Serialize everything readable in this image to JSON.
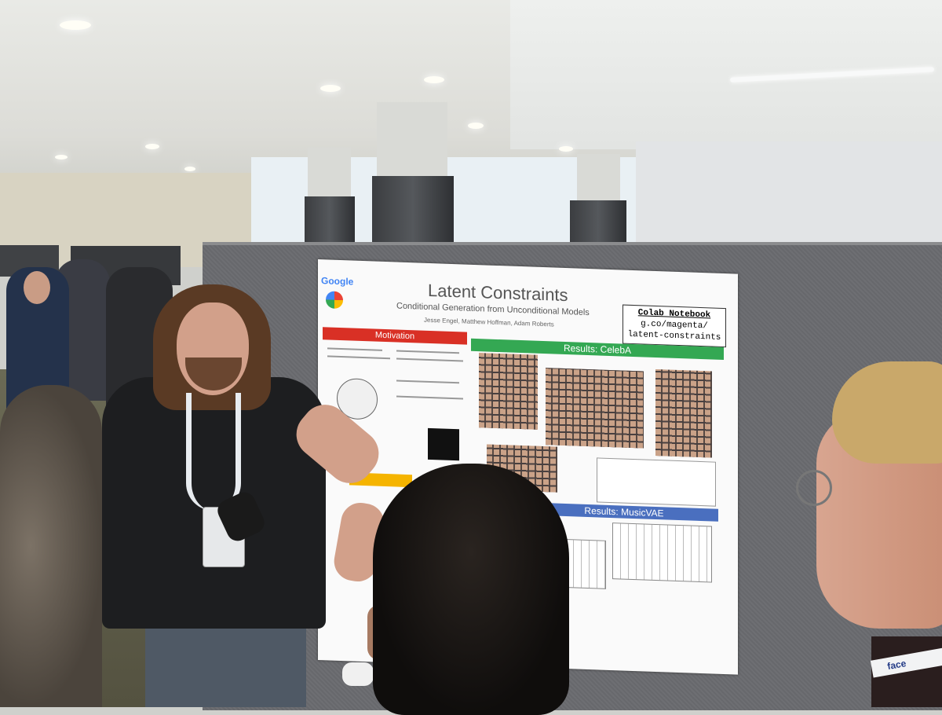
{
  "poster": {
    "logo": "Google",
    "title": "Latent Constraints",
    "subtitle": "Conditional Generation from Unconditional Models",
    "authors": "Jesse Engel, Matthew Hoffman, Adam Roberts",
    "colab": {
      "heading": "Colab Notebook",
      "line1": "g.co/magenta/",
      "line2": "latent-constraints"
    },
    "sections": {
      "motivation": "Motivation",
      "celeba": "Results: CelebA",
      "musicvae": "Results: MusicVAE"
    }
  },
  "badge_right": "face",
  "colors": {
    "motivation": "#d93025",
    "celeba": "#34a853",
    "musicvae": "#4a6fbf",
    "board": "#6b6c70"
  }
}
